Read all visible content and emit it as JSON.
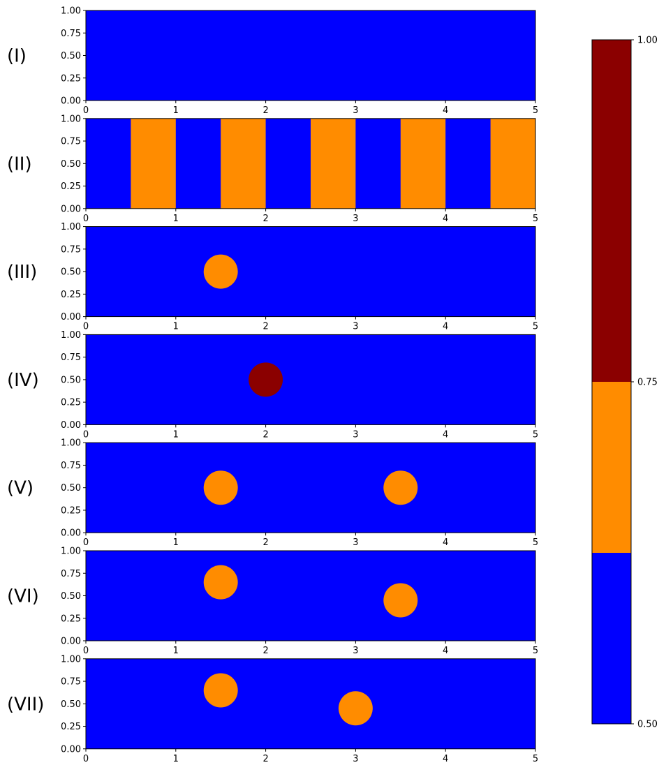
{
  "chart_data": {
    "type": "heatmap",
    "colormap": {
      "bins": [
        {
          "from": 0.5,
          "to": 0.625,
          "color": "#0000ff"
        },
        {
          "from": 0.625,
          "to": 0.75,
          "color": "#ff8c00"
        },
        {
          "from": 0.75,
          "to": 1.0,
          "color": "#8b0000"
        }
      ],
      "outside_color": "#0000ff"
    },
    "colorbar": {
      "range": [
        0.5,
        1.0
      ],
      "ticks": [
        0.5,
        0.75,
        1.0
      ],
      "tick_labels": [
        "0.50",
        "0.75",
        "1.00"
      ]
    },
    "panels": [
      {
        "label": "(I)",
        "xlim": [
          0,
          5
        ],
        "ylim": [
          0,
          1
        ],
        "xticks": [
          "0",
          "1",
          "2",
          "3",
          "4",
          "5"
        ],
        "yticks": [
          "0.00",
          "0.25",
          "0.50",
          "0.75",
          "1.00"
        ],
        "background_value": 0.5,
        "shapes": []
      },
      {
        "label": "(II)",
        "xlim": [
          0,
          5
        ],
        "ylim": [
          0,
          1
        ],
        "xticks": [
          "0",
          "1",
          "2",
          "3",
          "4",
          "5"
        ],
        "yticks": [
          "0.00",
          "0.25",
          "0.50",
          "0.75",
          "1.00"
        ],
        "background_value": 0.5,
        "shapes": [
          {
            "kind": "band",
            "x0": 0.5,
            "x1": 1.0,
            "value": 0.7
          },
          {
            "kind": "band",
            "x0": 1.5,
            "x1": 2.0,
            "value": 0.7
          },
          {
            "kind": "band",
            "x0": 2.5,
            "x1": 3.0,
            "value": 0.7
          },
          {
            "kind": "band",
            "x0": 3.5,
            "x1": 4.0,
            "value": 0.7
          },
          {
            "kind": "band",
            "x0": 4.5,
            "x1": 5.0,
            "value": 0.7
          }
        ]
      },
      {
        "label": "(III)",
        "xlim": [
          0,
          5
        ],
        "ylim": [
          0,
          1
        ],
        "xticks": [
          "0",
          "1",
          "2",
          "3",
          "4",
          "5"
        ],
        "yticks": [
          "0.00",
          "0.25",
          "0.50",
          "0.75",
          "1.00"
        ],
        "background_value": 0.5,
        "shapes": [
          {
            "kind": "circle",
            "cx": 1.5,
            "cy": 0.5,
            "r": 0.19,
            "value": 0.7
          }
        ]
      },
      {
        "label": "(IV)",
        "xlim": [
          0,
          5
        ],
        "ylim": [
          0,
          1
        ],
        "xticks": [
          "0",
          "1",
          "2",
          "3",
          "4",
          "5"
        ],
        "yticks": [
          "0.00",
          "0.25",
          "0.50",
          "0.75",
          "1.00"
        ],
        "background_value": 0.5,
        "shapes": [
          {
            "kind": "circle",
            "cx": 2.0,
            "cy": 0.5,
            "r": 0.19,
            "value": 1.0
          }
        ]
      },
      {
        "label": "(V)",
        "xlim": [
          0,
          5
        ],
        "ylim": [
          0,
          1
        ],
        "xticks": [
          "0",
          "1",
          "2",
          "3",
          "4",
          "5"
        ],
        "yticks": [
          "0.00",
          "0.25",
          "0.50",
          "0.75",
          "1.00"
        ],
        "background_value": 0.5,
        "shapes": [
          {
            "kind": "circle",
            "cx": 1.5,
            "cy": 0.5,
            "r": 0.19,
            "value": 0.7
          },
          {
            "kind": "circle",
            "cx": 3.5,
            "cy": 0.5,
            "r": 0.19,
            "value": 0.7
          }
        ]
      },
      {
        "label": "(VI)",
        "xlim": [
          0,
          5
        ],
        "ylim": [
          0,
          1
        ],
        "xticks": [
          "0",
          "1",
          "2",
          "3",
          "4",
          "5"
        ],
        "yticks": [
          "0.00",
          "0.25",
          "0.50",
          "0.75",
          "1.00"
        ],
        "background_value": 0.5,
        "shapes": [
          {
            "kind": "circle",
            "cx": 1.5,
            "cy": 0.65,
            "r": 0.19,
            "value": 0.7
          },
          {
            "kind": "circle",
            "cx": 3.5,
            "cy": 0.45,
            "r": 0.19,
            "value": 0.7
          }
        ]
      },
      {
        "label": "(VII)",
        "xlim": [
          0,
          5
        ],
        "ylim": [
          0,
          1
        ],
        "xticks": [
          "0",
          "1",
          "2",
          "3",
          "4",
          "5"
        ],
        "yticks": [
          "0.00",
          "0.25",
          "0.50",
          "0.75",
          "1.00"
        ],
        "background_value": 0.5,
        "shapes": [
          {
            "kind": "circle",
            "cx": 1.5,
            "cy": 0.65,
            "r": 0.19,
            "value": 0.7
          },
          {
            "kind": "circle",
            "cx": 3.0,
            "cy": 0.45,
            "r": 0.19,
            "value": 0.7
          }
        ]
      }
    ]
  }
}
